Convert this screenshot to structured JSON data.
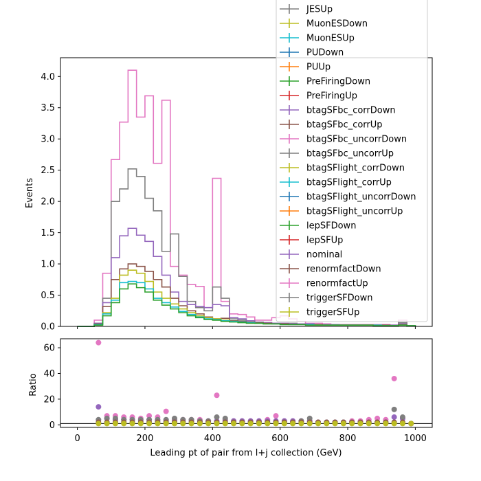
{
  "chart_data": [
    {
      "type": "line",
      "panel": "main",
      "drawstyle": "steps",
      "xlabel": "",
      "ylabel": "Events",
      "xlim": [
        -50,
        1050
      ],
      "ylim": [
        0,
        4.3
      ],
      "xticks": [
        0,
        200,
        400,
        600,
        800,
        1000
      ],
      "yticks": [
        0.0,
        0.5,
        1.0,
        1.5,
        2.0,
        2.5,
        3.0,
        3.5,
        4.0
      ],
      "ytick_labels": [
        "0.0",
        "0.5",
        "1.0",
        "1.5",
        "2.0",
        "2.5",
        "3.0",
        "3.5",
        "4.0"
      ],
      "x_bin_edges": [
        0,
        25,
        50,
        75,
        100,
        125,
        150,
        175,
        200,
        225,
        250,
        275,
        300,
        325,
        350,
        375,
        400,
        425,
        450,
        475,
        500,
        525,
        550,
        575,
        600,
        625,
        650,
        675,
        700,
        725,
        750,
        775,
        800,
        825,
        850,
        875,
        900,
        925,
        950,
        975,
        1000
      ],
      "legend": {
        "placement": "upper-right",
        "entries": [
          "JESUp",
          "MuonESDown",
          "MuonESUp",
          "PUDown",
          "PUUp",
          "PreFiringDown",
          "PreFiringUp",
          "btagSFbc_corrDown",
          "btagSFbc_corrUp",
          "btagSFbc_uncorrDown",
          "btagSFbc_uncorrUp",
          "btagSFlight_corrDown",
          "btagSFlight_corrUp",
          "btagSFlight_uncorrDown",
          "btagSFlight_uncorrUp",
          "lepSFDown",
          "lepSFUp",
          "nominal",
          "renormfactDown",
          "renormfactUp",
          "triggerSFDown",
          "triggerSFUp"
        ],
        "colors": [
          "#7f7f7f",
          "#bcbd22",
          "#17becf",
          "#1f77b4",
          "#ff7f0e",
          "#2ca02c",
          "#d62728",
          "#9467bd",
          "#8c564b",
          "#e377c2",
          "#7f7f7f",
          "#bcbd22",
          "#17becf",
          "#1f77b4",
          "#ff7f0e",
          "#2ca02c",
          "#d62728",
          "#9467bd",
          "#8c564b",
          "#e377c2",
          "#7f7f7f",
          "#bcbd22"
        ]
      },
      "series": [
        {
          "name": "renormfactUp",
          "color": "#e377c2",
          "values": [
            0,
            0,
            0.1,
            0.85,
            2.67,
            3.27,
            4.1,
            3.35,
            3.69,
            2.61,
            3.62,
            0.96,
            0.82,
            0.67,
            0.64,
            0.3,
            2.37,
            0.4,
            0.2,
            0.19,
            0.15,
            0.1,
            0.1,
            0.14,
            0.17,
            0.12,
            0.08,
            0.05,
            0.05,
            0.04,
            0.03,
            0.03,
            0.03,
            0.03,
            0.03,
            0.03,
            0.03,
            0.02,
            0.1,
            0.01
          ]
        },
        {
          "name": "triggerSFDown",
          "color": "#7f7f7f",
          "values": [
            0,
            0,
            0.05,
            0.45,
            2.0,
            2.2,
            2.52,
            2.4,
            2.05,
            1.85,
            1.2,
            1.48,
            0.8,
            0.4,
            0.3,
            0.25,
            0.63,
            0.45,
            0.12,
            0.1,
            0.07,
            0.06,
            0.06,
            0.05,
            0.05,
            0.05,
            0.04,
            0.04,
            0.03,
            0.03,
            0.03,
            0.02,
            0.02,
            0.02,
            0.02,
            0.02,
            0.02,
            0.02,
            0.06,
            0.01
          ]
        },
        {
          "name": "btagSFbc_corrDown",
          "color": "#9467bd",
          "values": [
            0,
            0,
            0.05,
            0.38,
            1.1,
            1.45,
            1.57,
            1.46,
            1.36,
            1.12,
            0.82,
            0.55,
            0.4,
            0.35,
            0.32,
            0.3,
            0.35,
            0.33,
            0.14,
            0.12,
            0.09,
            0.07,
            0.06,
            0.05,
            0.05,
            0.04,
            0.04,
            0.04,
            0.03,
            0.03,
            0.03,
            0.02,
            0.02,
            0.02,
            0.02,
            0.02,
            0.02,
            0.02,
            0.04,
            0.01
          ]
        },
        {
          "name": "btagSFbc_corrUp",
          "color": "#8c564b",
          "values": [
            0,
            0,
            0.04,
            0.32,
            0.75,
            0.92,
            1.0,
            0.96,
            0.88,
            0.75,
            0.63,
            0.45,
            0.33,
            0.25,
            0.2,
            0.15,
            0.12,
            0.13,
            0.09,
            0.08,
            0.07,
            0.06,
            0.05,
            0.04,
            0.04,
            0.03,
            0.03,
            0.03,
            0.03,
            0.02,
            0.02,
            0.02,
            0.02,
            0.02,
            0.02,
            0.02,
            0.02,
            0.01,
            0.03,
            0.01
          ]
        },
        {
          "name": "triggerSFUp",
          "color": "#bcbd22",
          "values": [
            0,
            0,
            0.03,
            0.22,
            0.45,
            0.82,
            0.9,
            0.85,
            0.72,
            0.55,
            0.45,
            0.36,
            0.28,
            0.22,
            0.17,
            0.14,
            0.12,
            0.1,
            0.08,
            0.07,
            0.06,
            0.05,
            0.04,
            0.04,
            0.03,
            0.03,
            0.03,
            0.03,
            0.02,
            0.02,
            0.02,
            0.02,
            0.02,
            0.02,
            0.02,
            0.02,
            0.01,
            0.01,
            0.02,
            0.01
          ]
        },
        {
          "name": "btagSFlight_corrUp",
          "color": "#17becf",
          "values": [
            0,
            0,
            0.03,
            0.2,
            0.42,
            0.7,
            0.72,
            0.7,
            0.6,
            0.45,
            0.38,
            0.31,
            0.24,
            0.19,
            0.15,
            0.12,
            0.11,
            0.09,
            0.08,
            0.07,
            0.06,
            0.05,
            0.04,
            0.04,
            0.03,
            0.03,
            0.03,
            0.03,
            0.02,
            0.02,
            0.02,
            0.02,
            0.02,
            0.02,
            0.02,
            0.02,
            0.01,
            0.01,
            0.02,
            0.01
          ]
        },
        {
          "name": "nominal",
          "color": "#2ca02c",
          "values": [
            0,
            0,
            0.02,
            0.17,
            0.38,
            0.6,
            0.68,
            0.62,
            0.55,
            0.42,
            0.34,
            0.28,
            0.22,
            0.17,
            0.14,
            0.11,
            0.1,
            0.08,
            0.07,
            0.06,
            0.05,
            0.05,
            0.04,
            0.04,
            0.03,
            0.03,
            0.03,
            0.02,
            0.02,
            0.02,
            0.02,
            0.02,
            0.02,
            0.02,
            0.02,
            0.01,
            0.01,
            0.01,
            0.02,
            0.01
          ]
        }
      ]
    },
    {
      "type": "scatter",
      "panel": "ratio",
      "xlabel": "Leading pt of pair from l+j collection (GeV)",
      "ylabel": "Ratio",
      "xlim": [
        -50,
        1050
      ],
      "ylim": [
        -2,
        67
      ],
      "xticks": [
        0,
        200,
        400,
        600,
        800,
        1000
      ],
      "yticks": [
        0,
        20,
        40,
        60
      ],
      "reference_line": 1,
      "x": [
        62.5,
        87.5,
        112.5,
        137.5,
        162.5,
        187.5,
        212.5,
        237.5,
        262.5,
        287.5,
        312.5,
        337.5,
        362.5,
        387.5,
        412.5,
        437.5,
        462.5,
        487.5,
        512.5,
        537.5,
        562.5,
        587.5,
        612.5,
        637.5,
        662.5,
        687.5,
        712.5,
        737.5,
        762.5,
        787.5,
        812.5,
        837.5,
        862.5,
        887.5,
        912.5,
        937.5,
        962.5,
        987.5
      ],
      "series": [
        {
          "name": "renormfactUp",
          "color": "#e377c2",
          "values": [
            64,
            7,
            7,
            6,
            6,
            5,
            7,
            6,
            10.5,
            4,
            4,
            4,
            4,
            3,
            23,
            4,
            3,
            3,
            3,
            3,
            4,
            7,
            3,
            3,
            3,
            3,
            2,
            2,
            2,
            2,
            3,
            3,
            4,
            5,
            4,
            36,
            5,
            1
          ]
        },
        {
          "name": "btagSFbc_corrDown",
          "color": "#9467bd",
          "values": [
            14,
            5,
            4,
            4,
            4,
            3,
            4,
            3,
            3,
            3,
            3,
            3,
            3,
            3,
            3,
            3,
            3,
            3,
            3,
            3,
            3,
            3,
            3,
            3,
            3,
            3,
            2,
            2,
            2,
            2,
            2,
            2,
            2,
            2,
            2,
            6,
            5,
            1
          ]
        },
        {
          "name": "triggerSFDown",
          "color": "#7f7f7f",
          "values": [
            4,
            5,
            5,
            4,
            4,
            4,
            4,
            4,
            4,
            5,
            4,
            4,
            3,
            3,
            6,
            5,
            2,
            2,
            2,
            2,
            2,
            2,
            2,
            2,
            3,
            5,
            2,
            2,
            2,
            2,
            2,
            2,
            2,
            2,
            2,
            12,
            6,
            1
          ]
        },
        {
          "name": "btagSFbc_corrUp",
          "color": "#8c564b",
          "values": [
            2,
            2,
            2,
            2,
            2,
            2,
            2,
            2,
            2,
            2,
            2,
            2,
            2,
            2,
            2,
            2,
            2,
            2,
            2,
            2,
            2,
            2,
            2,
            2,
            2,
            2,
            2,
            2,
            2,
            2,
            2,
            2,
            2,
            2,
            2,
            2,
            2,
            1
          ]
        },
        {
          "name": "triggerSFUp",
          "color": "#bcbd22",
          "values": [
            1,
            1,
            1,
            1,
            1,
            1,
            1,
            1,
            1,
            1,
            1,
            1,
            1,
            1,
            1,
            1,
            1,
            1,
            1,
            1,
            1,
            1,
            1,
            1,
            1,
            1,
            1,
            1,
            1,
            1,
            1,
            1,
            1,
            1,
            1,
            1,
            1,
            1
          ]
        }
      ]
    }
  ]
}
